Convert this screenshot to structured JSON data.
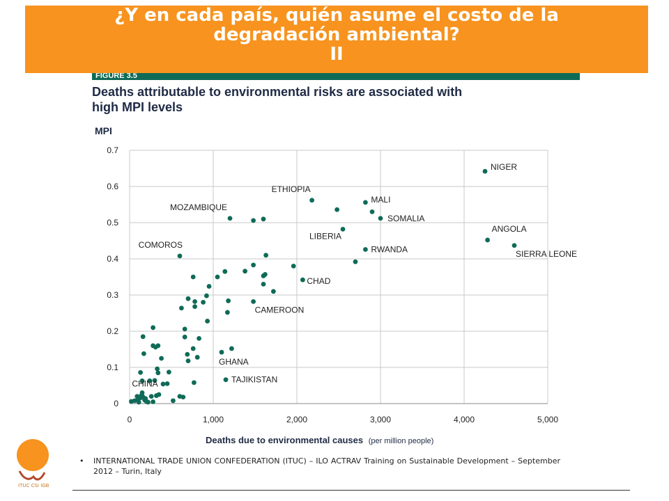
{
  "slide": {
    "title_lines": [
      "¿Y en cada país, quién asume el costo de la",
      "degradación ambiental?",
      "II"
    ],
    "figure_label": "FIGURE 3.5",
    "chart_title_lines": [
      "Deaths attributable to environmental risks are associated with",
      "high MPI levels"
    ],
    "footer": "INTERNATIONAL TRADE UNION CONFEDERATION (ITUC) – ILO ACTRAV Training on Sustainable Development – September 2012 – Turin, Italy",
    "footer_bullet": "•",
    "logo_text": "ITUC CSI IGB"
  },
  "colors": {
    "banner": "#f7931e",
    "figure_bar": "#0f6b57",
    "point": "#0f6b57",
    "grid": "#c9c9c9",
    "text": "#1f2a44"
  },
  "chart_data": {
    "type": "scatter",
    "title": "Deaths attributable to environmental risks are associated with high MPI levels",
    "ylabel": "MPI",
    "xlabel": "Deaths due to environmental causes",
    "xlabel_unit": "(per million people)",
    "xlim": [
      0,
      5000
    ],
    "ylim": [
      0,
      0.7
    ],
    "x_ticks": [
      0,
      1000,
      2000,
      3000,
      4000,
      5000
    ],
    "x_tick_labels": [
      "0",
      "1,000",
      "2,000",
      "3,000",
      "4,000",
      "5,000"
    ],
    "y_ticks": [
      0,
      0.1,
      0.2,
      0.3,
      0.4,
      0.5,
      0.6,
      0.7
    ],
    "y_tick_labels": [
      "0",
      "0.1",
      "0.2",
      "0.3",
      "0.4",
      "0.5",
      "0.6",
      "0.7"
    ],
    "grid": true,
    "labeled_points": [
      {
        "label": "NIGER",
        "x": 4250,
        "y": 0.642
      },
      {
        "label": "ETHIOPIA",
        "x": 2180,
        "y": 0.562
      },
      {
        "label": "MALI",
        "x": 2820,
        "y": 0.556
      },
      {
        "label": "SOMALIA",
        "x": 3000,
        "y": 0.512
      },
      {
        "label": "MOZAMBIQUE",
        "x": 1200,
        "y": 0.512
      },
      {
        "label": "LIBERIA",
        "x": 2550,
        "y": 0.482
      },
      {
        "label": "ANGOLA",
        "x": 4280,
        "y": 0.452
      },
      {
        "label": "SIERRA LEONE",
        "x": 4600,
        "y": 0.437
      },
      {
        "label": "COMOROS",
        "x": 600,
        "y": 0.408
      },
      {
        "label": "RWANDA",
        "x": 2820,
        "y": 0.426
      },
      {
        "label": "CHAD",
        "x": 2070,
        "y": 0.342
      },
      {
        "label": "CAMEROON",
        "x": 1480,
        "y": 0.282
      },
      {
        "label": "GHANA",
        "x": 1100,
        "y": 0.142
      },
      {
        "label": "TAJIKISTAN",
        "x": 1150,
        "y": 0.066
      },
      {
        "label": "CHINA",
        "x": 150,
        "y": 0.022
      }
    ],
    "points": [
      {
        "x": 2480,
        "y": 0.536
      },
      {
        "x": 2900,
        "y": 0.53
      },
      {
        "x": 1480,
        "y": 0.506
      },
      {
        "x": 1600,
        "y": 0.51
      },
      {
        "x": 2700,
        "y": 0.392
      },
      {
        "x": 1630,
        "y": 0.41
      },
      {
        "x": 1960,
        "y": 0.38
      },
      {
        "x": 1480,
        "y": 0.383
      },
      {
        "x": 1380,
        "y": 0.366
      },
      {
        "x": 1620,
        "y": 0.357
      },
      {
        "x": 1600,
        "y": 0.353
      },
      {
        "x": 1600,
        "y": 0.33
      },
      {
        "x": 1720,
        "y": 0.31
      },
      {
        "x": 1140,
        "y": 0.365
      },
      {
        "x": 1050,
        "y": 0.35
      },
      {
        "x": 760,
        "y": 0.35
      },
      {
        "x": 950,
        "y": 0.324
      },
      {
        "x": 920,
        "y": 0.298
      },
      {
        "x": 700,
        "y": 0.29
      },
      {
        "x": 780,
        "y": 0.282
      },
      {
        "x": 880,
        "y": 0.28
      },
      {
        "x": 780,
        "y": 0.268
      },
      {
        "x": 620,
        "y": 0.264
      },
      {
        "x": 1180,
        "y": 0.284
      },
      {
        "x": 1170,
        "y": 0.252
      },
      {
        "x": 930,
        "y": 0.228
      },
      {
        "x": 660,
        "y": 0.206
      },
      {
        "x": 660,
        "y": 0.184
      },
      {
        "x": 830,
        "y": 0.18
      },
      {
        "x": 760,
        "y": 0.152
      },
      {
        "x": 690,
        "y": 0.136
      },
      {
        "x": 810,
        "y": 0.128
      },
      {
        "x": 700,
        "y": 0.118
      },
      {
        "x": 1220,
        "y": 0.152
      },
      {
        "x": 160,
        "y": 0.185
      },
      {
        "x": 280,
        "y": 0.21
      },
      {
        "x": 280,
        "y": 0.16
      },
      {
        "x": 310,
        "y": 0.156
      },
      {
        "x": 340,
        "y": 0.16
      },
      {
        "x": 170,
        "y": 0.138
      },
      {
        "x": 380,
        "y": 0.125
      },
      {
        "x": 330,
        "y": 0.096
      },
      {
        "x": 130,
        "y": 0.086
      },
      {
        "x": 340,
        "y": 0.085
      },
      {
        "x": 470,
        "y": 0.087
      },
      {
        "x": 150,
        "y": 0.063
      },
      {
        "x": 240,
        "y": 0.063
      },
      {
        "x": 300,
        "y": 0.064
      },
      {
        "x": 400,
        "y": 0.054
      },
      {
        "x": 450,
        "y": 0.055
      },
      {
        "x": 770,
        "y": 0.058
      },
      {
        "x": 600,
        "y": 0.02
      },
      {
        "x": 640,
        "y": 0.018
      },
      {
        "x": 520,
        "y": 0.008
      },
      {
        "x": 260,
        "y": 0.02
      },
      {
        "x": 320,
        "y": 0.022
      },
      {
        "x": 350,
        "y": 0.025
      },
      {
        "x": 280,
        "y": 0.005
      },
      {
        "x": 20,
        "y": 0.006
      },
      {
        "x": 60,
        "y": 0.008
      },
      {
        "x": 100,
        "y": 0.012
      },
      {
        "x": 130,
        "y": 0.016
      },
      {
        "x": 160,
        "y": 0.018
      },
      {
        "x": 180,
        "y": 0.01
      },
      {
        "x": 200,
        "y": 0.006
      },
      {
        "x": 220,
        "y": 0.004
      },
      {
        "x": 110,
        "y": 0.004
      },
      {
        "x": 150,
        "y": 0.03
      },
      {
        "x": 90,
        "y": 0.02
      },
      {
        "x": 140,
        "y": 0.022
      },
      {
        "x": 190,
        "y": 0.014
      }
    ]
  }
}
